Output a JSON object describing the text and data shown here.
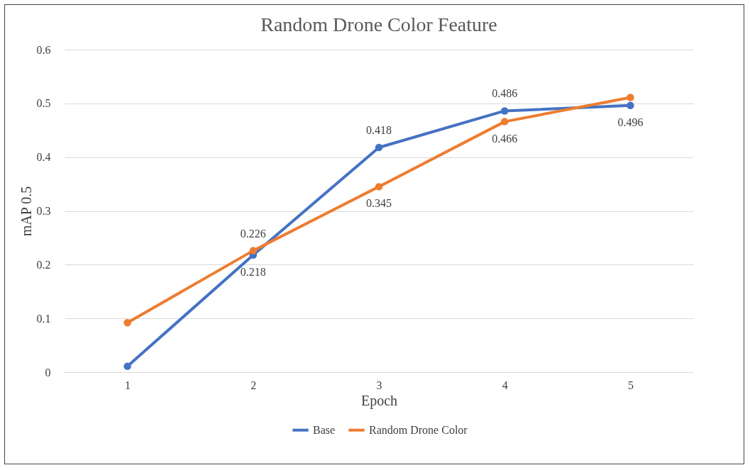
{
  "chart_data": {
    "type": "line",
    "title": "Random Drone Color Feature",
    "xlabel": "Epoch",
    "ylabel": "mAP 0.5",
    "categories": [
      "1",
      "2",
      "3",
      "4",
      "5"
    ],
    "series": [
      {
        "name": "Base",
        "color": "#4472c4",
        "values": [
          0.011,
          0.218,
          0.418,
          0.486,
          0.496
        ],
        "value_labels": [
          null,
          "0.218",
          "0.418",
          "0.486",
          "0.496"
        ]
      },
      {
        "name": "Random Drone Color",
        "color": "#ed7d31",
        "values": [
          0.092,
          0.226,
          0.345,
          0.466,
          0.511
        ],
        "value_labels": [
          null,
          "0.226",
          "0.345",
          "0.466",
          null
        ]
      }
    ],
    "ylim": [
      0,
      0.6
    ],
    "yticks": [
      0,
      0.1,
      0.2,
      0.3,
      0.4,
      0.5,
      0.6
    ],
    "grid": "y",
    "legend": "bottom",
    "marker": "circle",
    "line_style": "solid"
  }
}
